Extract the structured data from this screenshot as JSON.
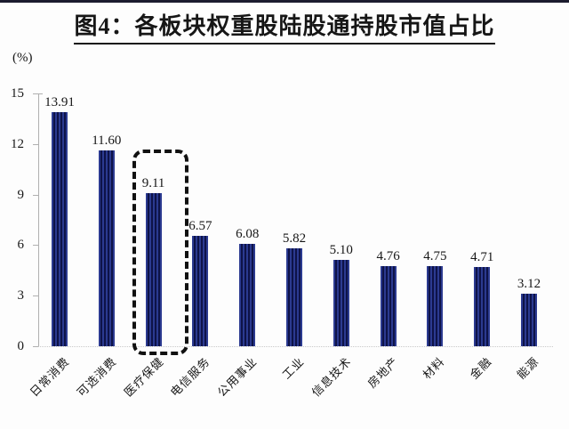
{
  "chart_data": {
    "type": "bar",
    "title": "图4：各板块权重股陆股通持股市值占比",
    "xlabel": "",
    "ylabel": "(%)",
    "ylim": [
      0,
      15
    ],
    "y_ticks": [
      0,
      3,
      6,
      9,
      12,
      15
    ],
    "grid": false,
    "legend": "none",
    "categories": [
      "日常消费",
      "可选消费",
      "医疗保健",
      "电信服务",
      "公用事业",
      "工业",
      "信息技术",
      "房地产",
      "材料",
      "金融",
      "能源"
    ],
    "values": [
      13.91,
      11.6,
      9.11,
      6.57,
      6.08,
      5.82,
      5.1,
      4.76,
      4.75,
      4.71,
      3.12
    ],
    "value_labels": [
      "13.91",
      "11.60",
      "9.11",
      "6.57",
      "6.08",
      "5.82",
      "5.10",
      "4.76",
      "4.75",
      "4.71",
      "3.12"
    ],
    "highlight": {
      "category": "医疗保健",
      "index": 2,
      "style": "black-dashed-rounded-box"
    },
    "colors": {
      "bar_stripe_light": "#2b3a90",
      "bar_stripe_dark": "#0e1348",
      "axis": "#b0b0b0",
      "baseline_dotted": "#c9c9c9",
      "text": "#161616",
      "top_rule": "#1b1b2e",
      "background": "#fdfdfd",
      "highlight_border": "#111111"
    }
  }
}
